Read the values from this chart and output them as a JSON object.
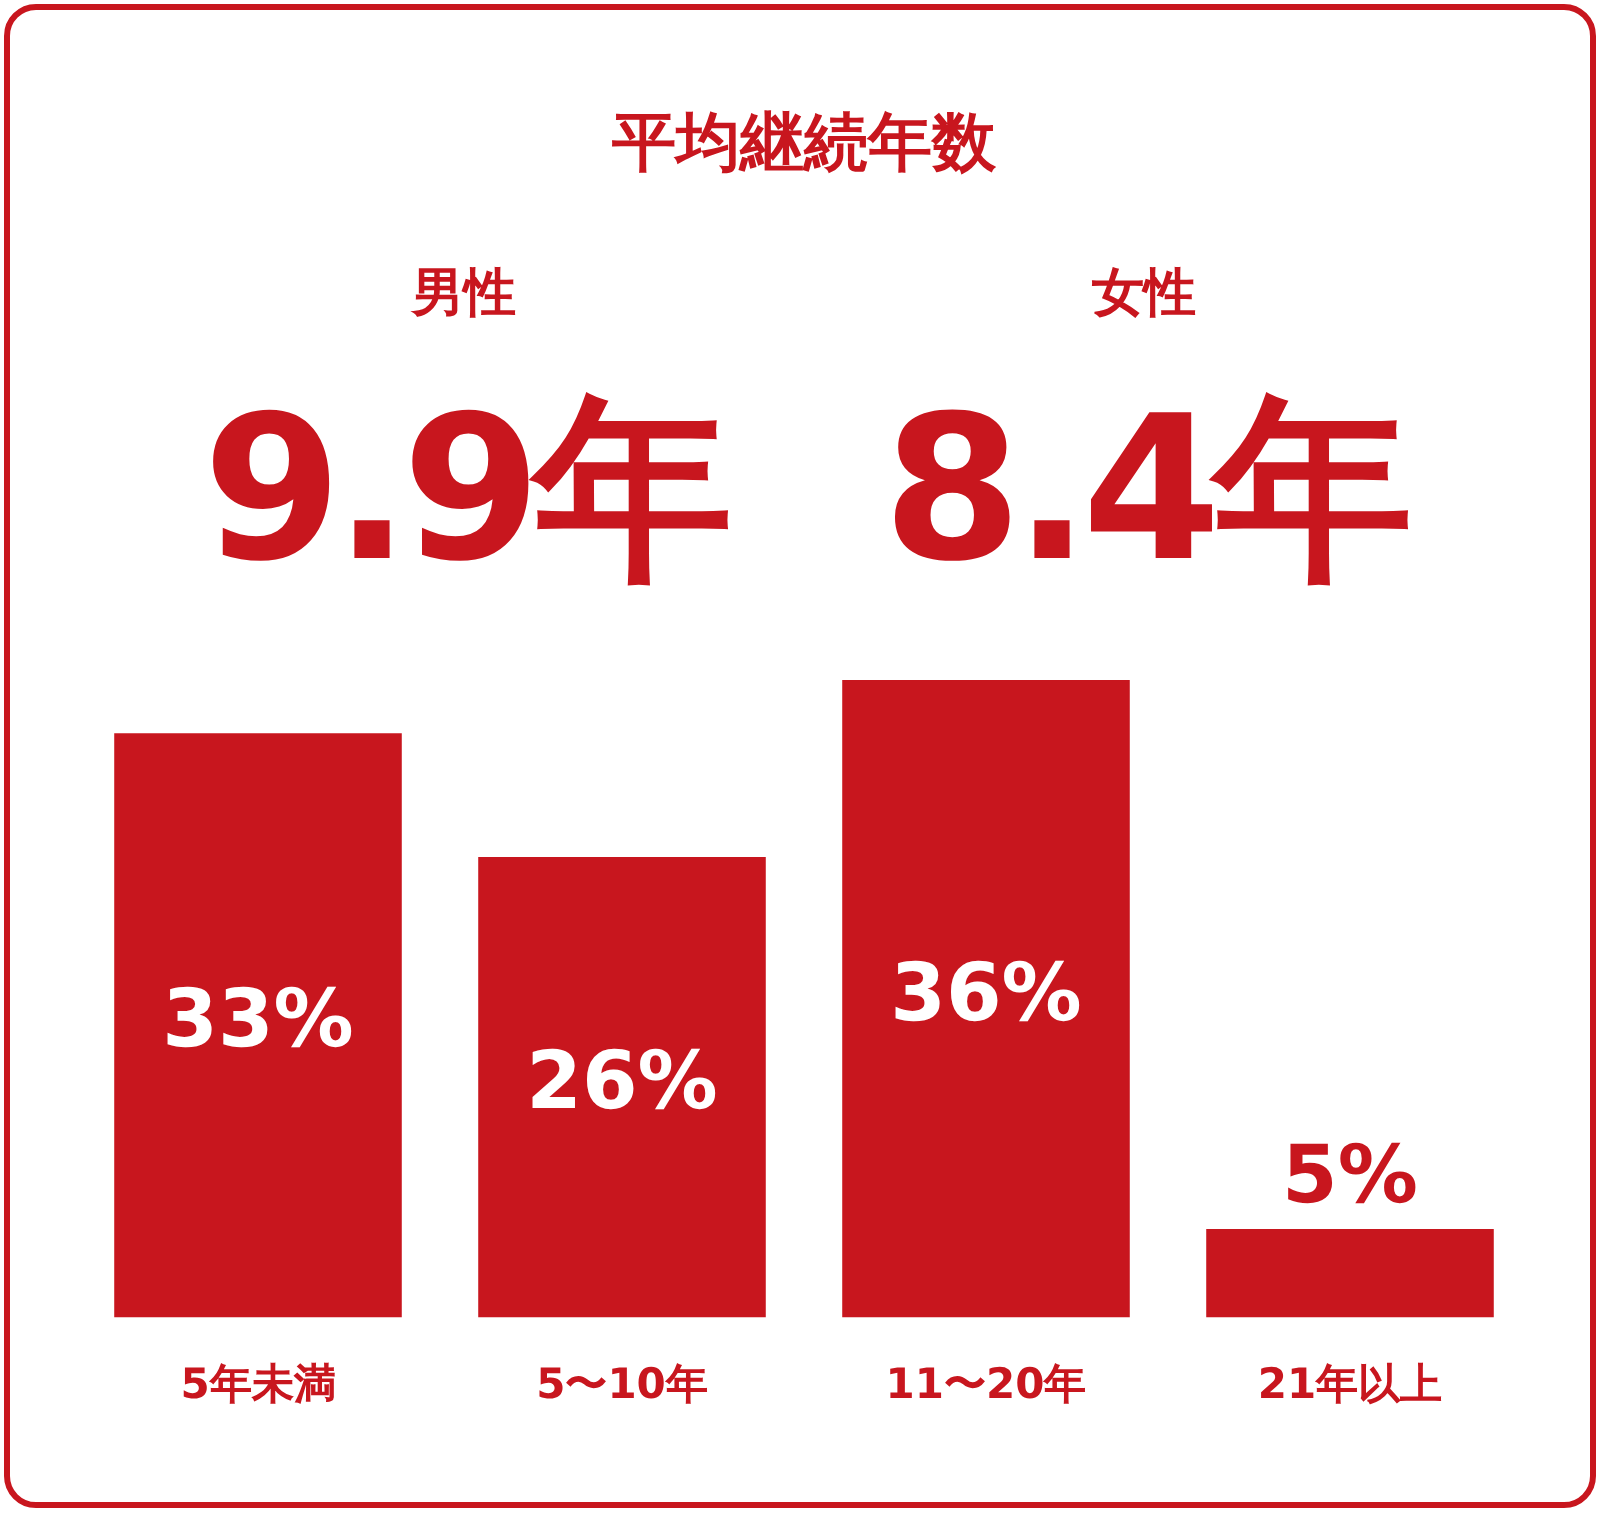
{
  "chart_data": {
    "type": "bar",
    "title": "平均継続年数",
    "annotations": [
      "男性",
      "女性",
      "9.9年",
      "8.4年"
    ],
    "categories": [
      "5年未満",
      "5〜10年",
      "11〜20年",
      "21年以上"
    ],
    "values": [
      33,
      26,
      36,
      5
    ],
    "value_labels": [
      "33%",
      "26%",
      "36%",
      "5%"
    ],
    "color": "#c8161e",
    "grid": false,
    "legend": false
  }
}
